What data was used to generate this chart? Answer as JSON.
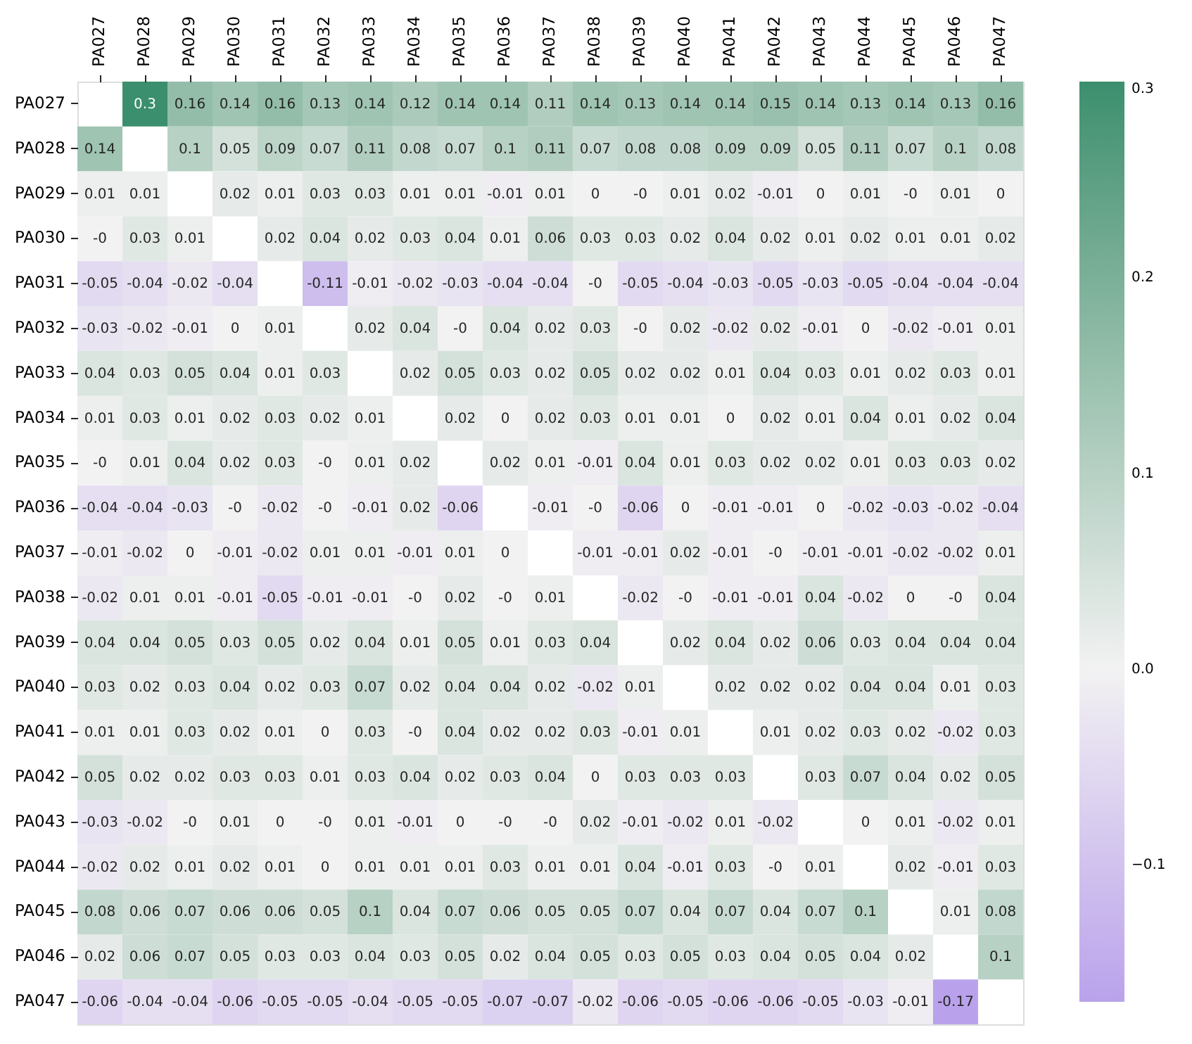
{
  "chart_data": {
    "type": "heatmap",
    "categories": [
      "PA027",
      "PA028",
      "PA029",
      "PA030",
      "PA031",
      "PA032",
      "PA033",
      "PA034",
      "PA035",
      "PA036",
      "PA037",
      "PA038",
      "PA039",
      "PA040",
      "PA041",
      "PA042",
      "PA043",
      "PA044",
      "PA045",
      "PA046",
      "PA047"
    ],
    "y_categories": [
      "PA027",
      "PA028",
      "PA029",
      "PA030",
      "PA031",
      "PA032",
      "PA033",
      "PA034",
      "PA035",
      "PA036",
      "PA037",
      "PA038",
      "PA039",
      "PA040",
      "PA041",
      "PA042",
      "PA043",
      "PA044",
      "PA045",
      "PA046",
      "PA047"
    ],
    "cells": [
      [
        null,
        0.3,
        0.16,
        0.14,
        0.16,
        0.13,
        0.14,
        0.12,
        0.14,
        0.14,
        0.11,
        0.14,
        0.13,
        0.14,
        0.14,
        0.15,
        0.14,
        0.13,
        0.14,
        0.13,
        0.16
      ],
      [
        0.14,
        null,
        0.1,
        0.05,
        0.09,
        0.07,
        0.11,
        0.08,
        0.07,
        0.1,
        0.11,
        0.07,
        0.08,
        0.08,
        0.09,
        0.09,
        0.05,
        0.11,
        0.07,
        0.1,
        0.08
      ],
      [
        0.01,
        0.01,
        null,
        0.02,
        0.01,
        0.03,
        0.03,
        0.01,
        0.01,
        -0.01,
        0.01,
        0,
        0,
        0.01,
        0.02,
        -0.01,
        0,
        0.01,
        0,
        0.01,
        0
      ],
      [
        0,
        0.03,
        0.01,
        null,
        0.02,
        0.04,
        0.02,
        0.03,
        0.04,
        0.01,
        0.06,
        0.03,
        0.03,
        0.02,
        0.04,
        0.02,
        0.01,
        0.02,
        0.01,
        0.01,
        0.02
      ],
      [
        -0.05,
        -0.04,
        -0.02,
        -0.04,
        null,
        -0.11,
        -0.01,
        -0.02,
        -0.03,
        -0.04,
        -0.04,
        0,
        -0.05,
        -0.04,
        -0.03,
        -0.05,
        -0.03,
        -0.05,
        -0.04,
        -0.04,
        -0.04
      ],
      [
        -0.03,
        -0.02,
        -0.01,
        0,
        0.01,
        null,
        0.02,
        0.04,
        0,
        0.04,
        0.02,
        0.03,
        0,
        0.02,
        -0.02,
        0.02,
        -0.01,
        0,
        -0.02,
        -0.01,
        0.01
      ],
      [
        0.04,
        0.03,
        0.05,
        0.04,
        0.01,
        0.03,
        null,
        0.02,
        0.05,
        0.03,
        0.02,
        0.05,
        0.02,
        0.02,
        0.01,
        0.04,
        0.03,
        0.01,
        0.02,
        0.03,
        0.01
      ],
      [
        0.01,
        0.03,
        0.01,
        0.02,
        0.03,
        0.02,
        0.01,
        null,
        0.02,
        0,
        0.02,
        0.03,
        0.01,
        0.01,
        0,
        0.02,
        0.01,
        0.04,
        0.01,
        0.02,
        0.04
      ],
      [
        0,
        0.01,
        0.04,
        0.02,
        0.03,
        0,
        0.01,
        0.02,
        null,
        0.02,
        0.01,
        -0.01,
        0.04,
        0.01,
        0.03,
        0.02,
        0.02,
        0.01,
        0.03,
        0.03,
        0.02
      ],
      [
        -0.04,
        -0.04,
        -0.03,
        0,
        -0.02,
        0,
        -0.01,
        0.02,
        -0.06,
        null,
        -0.01,
        0,
        -0.06,
        0,
        -0.01,
        -0.01,
        0,
        -0.02,
        -0.03,
        -0.02,
        -0.04
      ],
      [
        -0.01,
        -0.02,
        0,
        -0.01,
        -0.02,
        0.01,
        0.01,
        -0.01,
        0.01,
        0,
        null,
        -0.01,
        -0.01,
        0.02,
        -0.01,
        0,
        -0.01,
        -0.01,
        -0.02,
        -0.02,
        0.01
      ],
      [
        -0.02,
        0.01,
        0.01,
        -0.01,
        -0.05,
        -0.01,
        -0.01,
        0,
        0.02,
        0,
        0.01,
        null,
        -0.02,
        0,
        -0.01,
        -0.01,
        0.04,
        -0.02,
        0,
        0,
        0.04
      ],
      [
        0.04,
        0.04,
        0.05,
        0.03,
        0.05,
        0.02,
        0.04,
        0.01,
        0.05,
        0.01,
        0.03,
        0.04,
        null,
        0.02,
        0.04,
        0.02,
        0.06,
        0.03,
        0.04,
        0.04,
        0.04
      ],
      [
        0.03,
        0.02,
        0.03,
        0.04,
        0.02,
        0.03,
        0.07,
        0.02,
        0.04,
        0.04,
        0.02,
        -0.02,
        0.01,
        null,
        0.02,
        0.02,
        0.02,
        0.04,
        0.04,
        0.01,
        0.03
      ],
      [
        0.01,
        0.01,
        0.03,
        0.02,
        0.01,
        0,
        0.03,
        0,
        0.04,
        0.02,
        0.02,
        0.03,
        -0.01,
        0.01,
        null,
        0.01,
        0.02,
        0.03,
        0.02,
        -0.02,
        0.03
      ],
      [
        0.05,
        0.02,
        0.02,
        0.03,
        0.03,
        0.01,
        0.03,
        0.04,
        0.02,
        0.03,
        0.04,
        0,
        0.03,
        0.03,
        0.03,
        null,
        0.03,
        0.07,
        0.04,
        0.02,
        0.05
      ],
      [
        -0.03,
        -0.02,
        0,
        0.01,
        0,
        0,
        0.01,
        -0.01,
        0,
        0,
        0,
        0.02,
        -0.01,
        -0.02,
        0.01,
        -0.02,
        null,
        0,
        0.01,
        -0.02,
        0.01
      ],
      [
        -0.02,
        0.02,
        0.01,
        0.02,
        0.01,
        0,
        0.01,
        0.01,
        0.01,
        0.03,
        0.01,
        0.01,
        0.04,
        -0.01,
        0.03,
        0,
        0.01,
        null,
        0.02,
        -0.01,
        0.03
      ],
      [
        0.08,
        0.06,
        0.07,
        0.06,
        0.06,
        0.05,
        0.1,
        0.04,
        0.07,
        0.06,
        0.05,
        0.05,
        0.07,
        0.04,
        0.07,
        0.04,
        0.07,
        0.1,
        null,
        0.01,
        0.08
      ],
      [
        0.02,
        0.06,
        0.07,
        0.05,
        0.03,
        0.03,
        0.04,
        0.03,
        0.05,
        0.02,
        0.04,
        0.05,
        0.03,
        0.05,
        0.03,
        0.04,
        0.05,
        0.04,
        0.02,
        null,
        0.1
      ],
      [
        -0.06,
        -0.04,
        -0.04,
        -0.06,
        -0.05,
        -0.05,
        -0.04,
        -0.05,
        -0.05,
        -0.07,
        -0.07,
        -0.02,
        -0.06,
        -0.05,
        -0.06,
        -0.06,
        -0.05,
        -0.03,
        -0.01,
        -0.17,
        null
      ]
    ],
    "cell_labels": [
      [
        null,
        "0.3",
        "0.16",
        "0.14",
        "0.16",
        "0.13",
        "0.14",
        "0.12",
        "0.14",
        "0.14",
        "0.11",
        "0.14",
        "0.13",
        "0.14",
        "0.14",
        "0.15",
        "0.14",
        "0.13",
        "0.14",
        "0.13",
        "0.16"
      ],
      [
        "0.14",
        null,
        "0.1",
        "0.05",
        "0.09",
        "0.07",
        "0.11",
        "0.08",
        "0.07",
        "0.1",
        "0.11",
        "0.07",
        "0.08",
        "0.08",
        "0.09",
        "0.09",
        "0.05",
        "0.11",
        "0.07",
        "0.1",
        "0.08"
      ],
      [
        "0.01",
        "0.01",
        null,
        "0.02",
        "0.01",
        "0.03",
        "0.03",
        "0.01",
        "0.01",
        "-0.01",
        "0.01",
        "0",
        "-0",
        "0.01",
        "0.02",
        "-0.01",
        "0",
        "0.01",
        "-0",
        "0.01",
        "0"
      ],
      [
        "-0",
        "0.03",
        "0.01",
        null,
        "0.02",
        "0.04",
        "0.02",
        "0.03",
        "0.04",
        "0.01",
        "0.06",
        "0.03",
        "0.03",
        "0.02",
        "0.04",
        "0.02",
        "0.01",
        "0.02",
        "0.01",
        "0.01",
        "0.02"
      ],
      [
        "-0.05",
        "-0.04",
        "-0.02",
        "-0.04",
        null,
        "-0.11",
        "-0.01",
        "-0.02",
        "-0.03",
        "-0.04",
        "-0.04",
        "-0",
        "-0.05",
        "-0.04",
        "-0.03",
        "-0.05",
        "-0.03",
        "-0.05",
        "-0.04",
        "-0.04",
        "-0.04"
      ],
      [
        "-0.03",
        "-0.02",
        "-0.01",
        "0",
        "0.01",
        null,
        "0.02",
        "0.04",
        "-0",
        "0.04",
        "0.02",
        "0.03",
        "-0",
        "0.02",
        "-0.02",
        "0.02",
        "-0.01",
        "0",
        "-0.02",
        "-0.01",
        "0.01"
      ],
      [
        "0.04",
        "0.03",
        "0.05",
        "0.04",
        "0.01",
        "0.03",
        null,
        "0.02",
        "0.05",
        "0.03",
        "0.02",
        "0.05",
        "0.02",
        "0.02",
        "0.01",
        "0.04",
        "0.03",
        "0.01",
        "0.02",
        "0.03",
        "0.01"
      ],
      [
        "0.01",
        "0.03",
        "0.01",
        "0.02",
        "0.03",
        "0.02",
        "0.01",
        null,
        "0.02",
        "0",
        "0.02",
        "0.03",
        "0.01",
        "0.01",
        "0",
        "0.02",
        "0.01",
        "0.04",
        "0.01",
        "0.02",
        "0.04"
      ],
      [
        "-0",
        "0.01",
        "0.04",
        "0.02",
        "0.03",
        "-0",
        "0.01",
        "0.02",
        null,
        "0.02",
        "0.01",
        "-0.01",
        "0.04",
        "0.01",
        "0.03",
        "0.02",
        "0.02",
        "0.01",
        "0.03",
        "0.03",
        "0.02"
      ],
      [
        "-0.04",
        "-0.04",
        "-0.03",
        "-0",
        "-0.02",
        "-0",
        "-0.01",
        "0.02",
        "-0.06",
        null,
        "-0.01",
        "-0",
        "-0.06",
        "0",
        "-0.01",
        "-0.01",
        "0",
        "-0.02",
        "-0.03",
        "-0.02",
        "-0.04"
      ],
      [
        "-0.01",
        "-0.02",
        "0",
        "-0.01",
        "-0.02",
        "0.01",
        "0.01",
        "-0.01",
        "0.01",
        "0",
        null,
        "-0.01",
        "-0.01",
        "0.02",
        "-0.01",
        "-0",
        "-0.01",
        "-0.01",
        "-0.02",
        "-0.02",
        "0.01"
      ],
      [
        "-0.02",
        "0.01",
        "0.01",
        "-0.01",
        "-0.05",
        "-0.01",
        "-0.01",
        "-0",
        "0.02",
        "-0",
        "0.01",
        null,
        "-0.02",
        "-0",
        "-0.01",
        "-0.01",
        "0.04",
        "-0.02",
        "0",
        "-0",
        "0.04"
      ],
      [
        "0.04",
        "0.04",
        "0.05",
        "0.03",
        "0.05",
        "0.02",
        "0.04",
        "0.01",
        "0.05",
        "0.01",
        "0.03",
        "0.04",
        null,
        "0.02",
        "0.04",
        "0.02",
        "0.06",
        "0.03",
        "0.04",
        "0.04",
        "0.04"
      ],
      [
        "0.03",
        "0.02",
        "0.03",
        "0.04",
        "0.02",
        "0.03",
        "0.07",
        "0.02",
        "0.04",
        "0.04",
        "0.02",
        "-0.02",
        "0.01",
        null,
        "0.02",
        "0.02",
        "0.02",
        "0.04",
        "0.04",
        "0.01",
        "0.03"
      ],
      [
        "0.01",
        "0.01",
        "0.03",
        "0.02",
        "0.01",
        "0",
        "0.03",
        "-0",
        "0.04",
        "0.02",
        "0.02",
        "0.03",
        "-0.01",
        "0.01",
        null,
        "0.01",
        "0.02",
        "0.03",
        "0.02",
        "-0.02",
        "0.03"
      ],
      [
        "0.05",
        "0.02",
        "0.02",
        "0.03",
        "0.03",
        "0.01",
        "0.03",
        "0.04",
        "0.02",
        "0.03",
        "0.04",
        "0",
        "0.03",
        "0.03",
        "0.03",
        null,
        "0.03",
        "0.07",
        "0.04",
        "0.02",
        "0.05"
      ],
      [
        "-0.03",
        "-0.02",
        "-0",
        "0.01",
        "0",
        "-0",
        "0.01",
        "-0.01",
        "0",
        "-0",
        "-0",
        "0.02",
        "-0.01",
        "-0.02",
        "0.01",
        "-0.02",
        null,
        "0",
        "0.01",
        "-0.02",
        "0.01"
      ],
      [
        "-0.02",
        "0.02",
        "0.01",
        "0.02",
        "0.01",
        "0",
        "0.01",
        "0.01",
        "0.01",
        "0.03",
        "0.01",
        "0.01",
        "0.04",
        "-0.01",
        "0.03",
        "-0",
        "0.01",
        null,
        "0.02",
        "-0.01",
        "0.03"
      ],
      [
        "0.08",
        "0.06",
        "0.07",
        "0.06",
        "0.06",
        "0.05",
        "0.1",
        "0.04",
        "0.07",
        "0.06",
        "0.05",
        "0.05",
        "0.07",
        "0.04",
        "0.07",
        "0.04",
        "0.07",
        "0.1",
        null,
        "0.01",
        "0.08"
      ],
      [
        "0.02",
        "0.06",
        "0.07",
        "0.05",
        "0.03",
        "0.03",
        "0.04",
        "0.03",
        "0.05",
        "0.02",
        "0.04",
        "0.05",
        "0.03",
        "0.05",
        "0.03",
        "0.04",
        "0.05",
        "0.04",
        "0.02",
        null,
        "0.1"
      ],
      [
        "-0.06",
        "-0.04",
        "-0.04",
        "-0.06",
        "-0.05",
        "-0.05",
        "-0.04",
        "-0.05",
        "-0.05",
        "-0.07",
        "-0.07",
        "-0.02",
        "-0.06",
        "-0.05",
        "-0.06",
        "-0.06",
        "-0.05",
        "-0.03",
        "-0.01",
        "-0.17",
        null
      ]
    ],
    "clim": [
      -0.17,
      0.3
    ],
    "cticks": [
      0.3,
      0.2,
      0.1,
      {
        "value": 0,
        "label": "0.0"
      },
      {
        "value": -0.1,
        "label": "−0.1"
      }
    ]
  }
}
